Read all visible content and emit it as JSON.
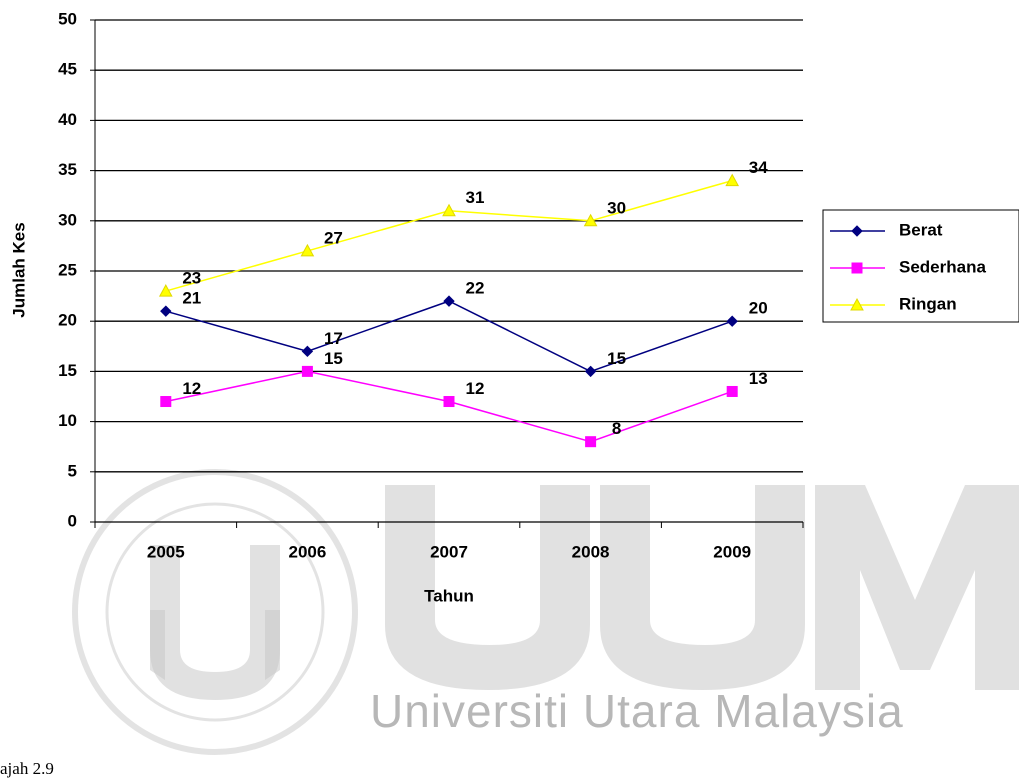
{
  "chart_data": {
    "type": "line",
    "categories": [
      "2005",
      "2006",
      "2007",
      "2008",
      "2009"
    ],
    "series": [
      {
        "name": "Berat",
        "color": "#000080",
        "marker": "diamond",
        "values": [
          21,
          17,
          22,
          15,
          20
        ]
      },
      {
        "name": "Sederhana",
        "color": "#ff00ff",
        "marker": "square",
        "values": [
          12,
          15,
          12,
          8,
          13
        ]
      },
      {
        "name": "Ringan",
        "color": "#ffff00",
        "marker": "triangle",
        "values": [
          23,
          27,
          31,
          30,
          34
        ]
      }
    ],
    "ylim": [
      0,
      50
    ],
    "yticks": [
      0,
      5,
      10,
      15,
      20,
      25,
      30,
      35,
      40,
      45,
      50
    ],
    "grid": true,
    "xlabel": "Tahun",
    "ylabel": "Jumlah Kes",
    "legend": "right"
  },
  "caption": "ajah 2.9",
  "watermark": "Universiti Utara Malaysia"
}
